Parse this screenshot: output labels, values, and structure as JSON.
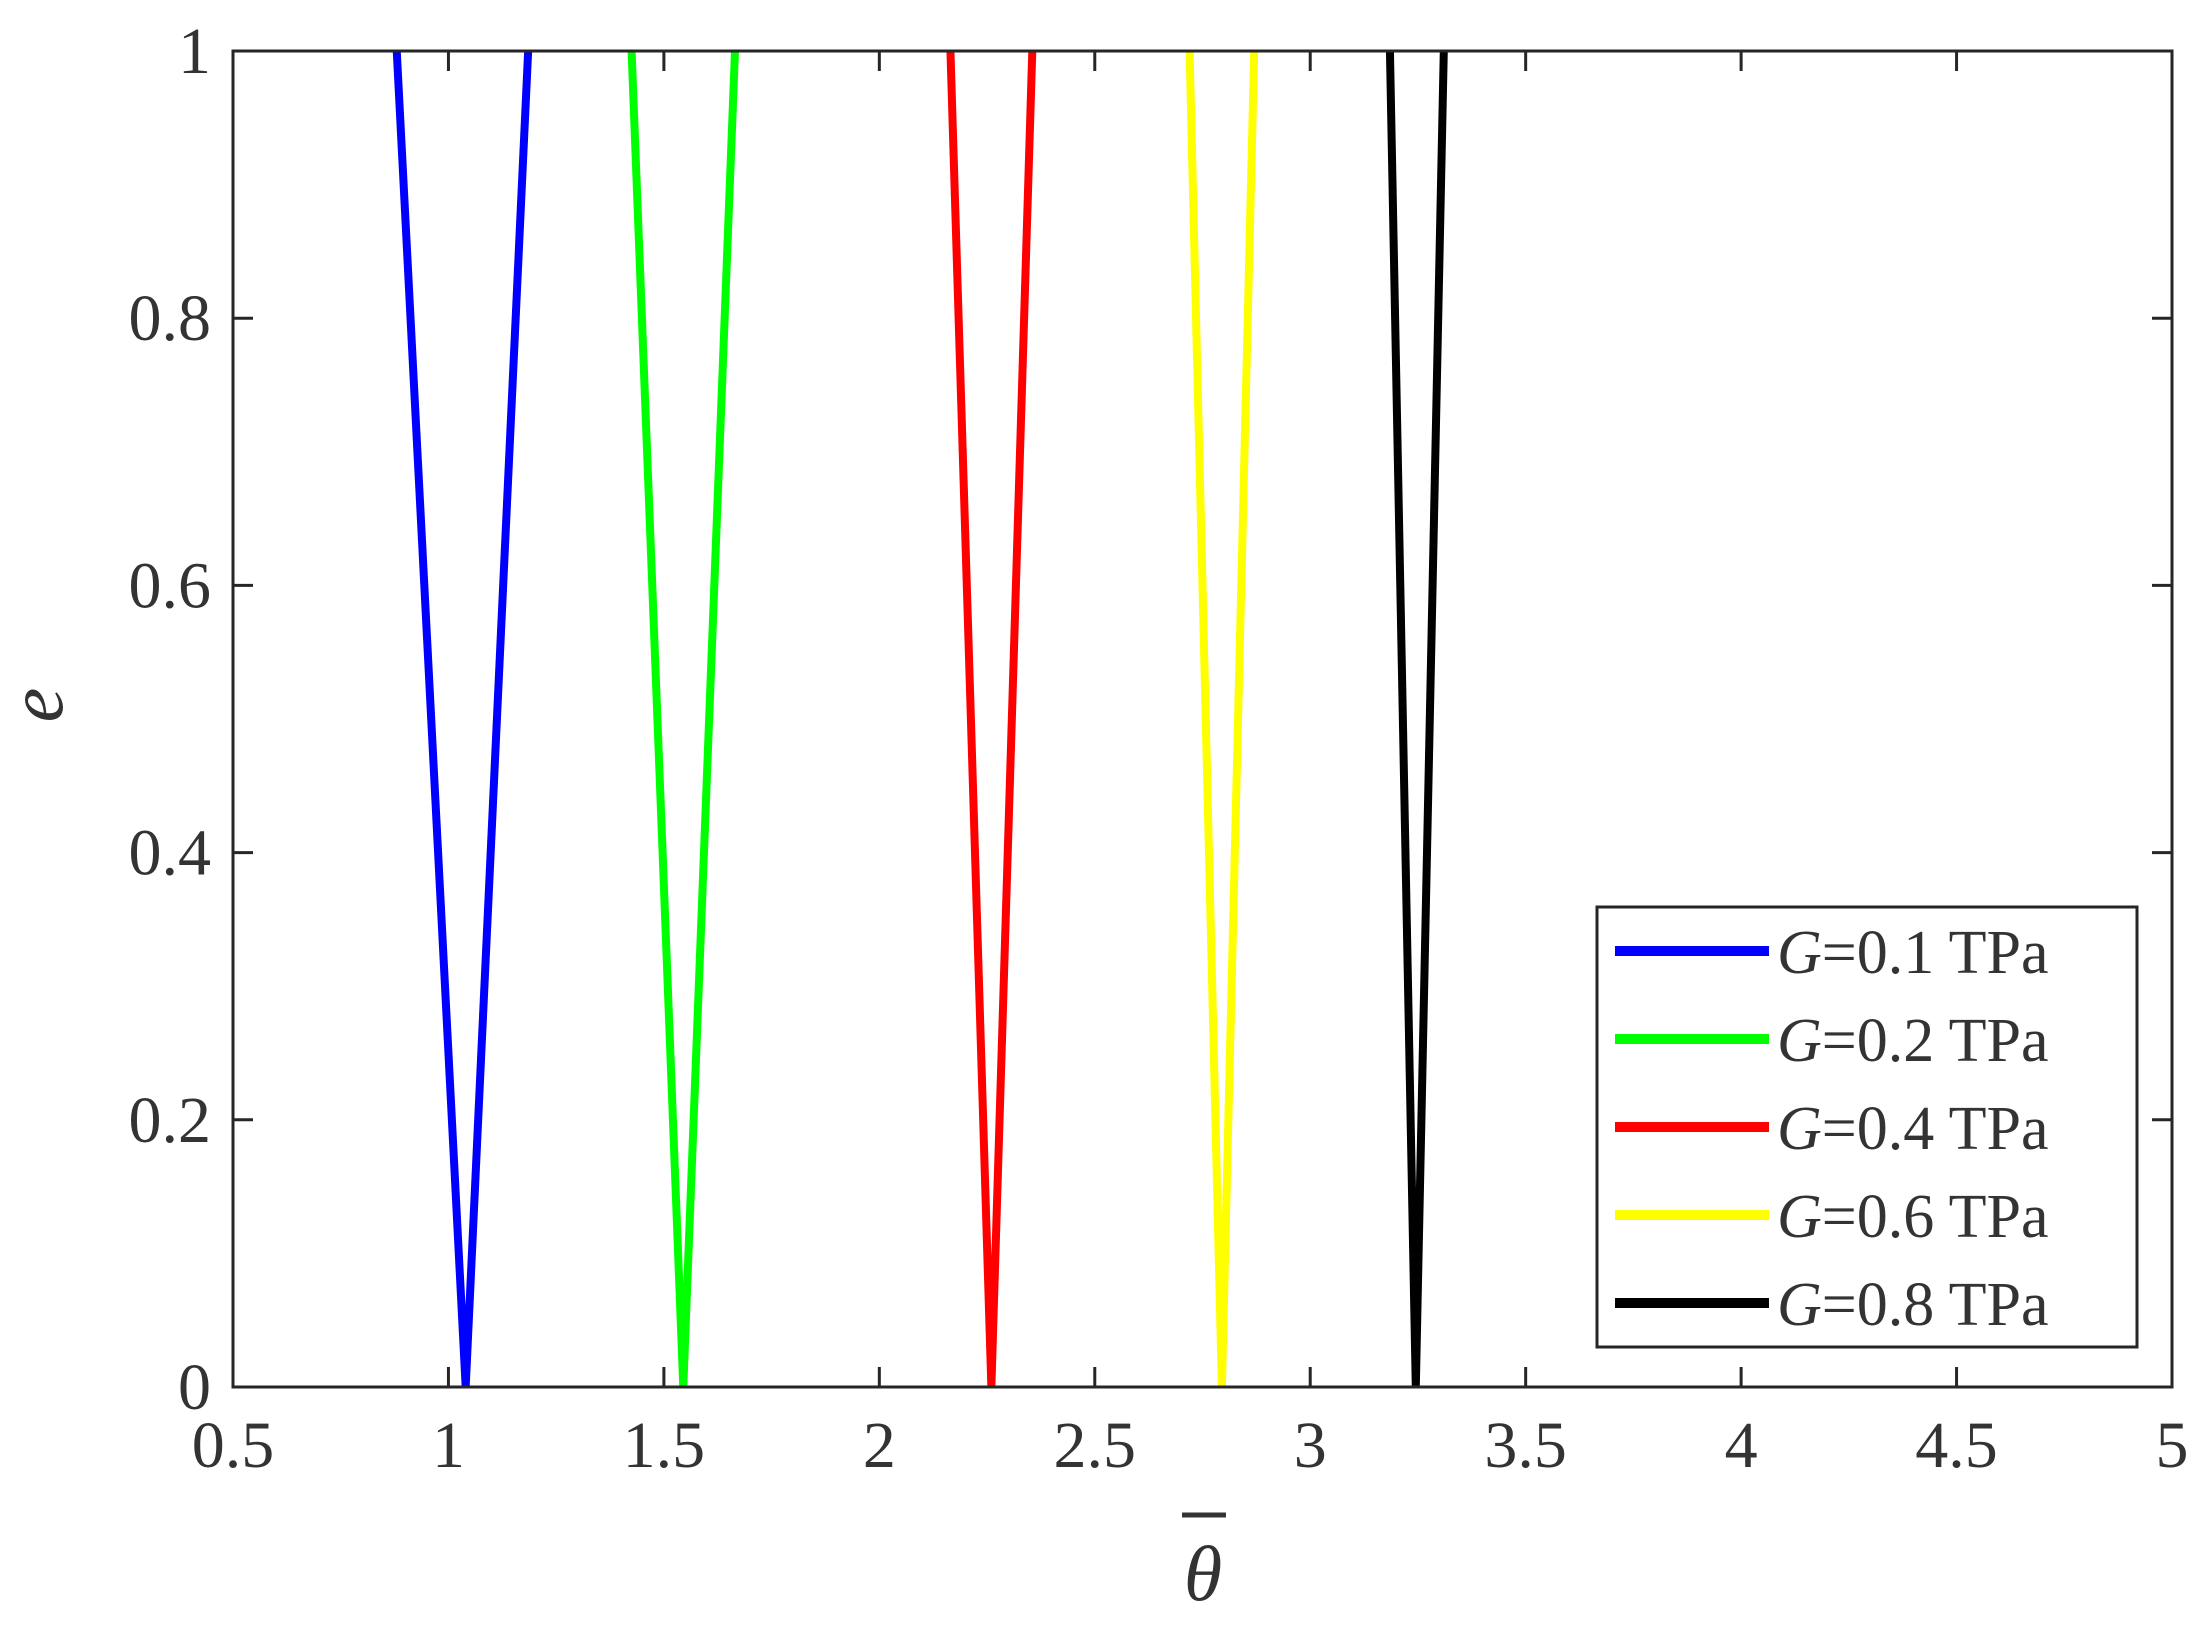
{
  "chart_data": {
    "type": "line",
    "xlabel": "θ",
    "ylabel": "e",
    "xlim": [
      0.5,
      5
    ],
    "ylim": [
      0,
      1
    ],
    "xticks": [
      "0.5",
      "1",
      "1.5",
      "2",
      "2.5",
      "3",
      "3.5",
      "4",
      "4.5",
      "5"
    ],
    "yticks": [
      "0",
      "0.2",
      "0.4",
      "0.6",
      "0.8",
      "1"
    ],
    "grid": false,
    "legend_position": "lower-right",
    "series": [
      {
        "name_prefix": "G",
        "name_suffix": "=0.1 TPa",
        "color": "#0000ff",
        "x": [
          0.88,
          1.04,
          1.185
        ],
        "y": [
          1,
          0,
          1
        ]
      },
      {
        "name_prefix": "G",
        "name_suffix": "=0.2 TPa",
        "color": "#00ff00",
        "x": [
          1.425,
          1.545,
          1.665
        ],
        "y": [
          1,
          0,
          1
        ]
      },
      {
        "name_prefix": "G",
        "name_suffix": "=0.4 TPa",
        "color": "#ff0000",
        "x": [
          2.165,
          2.26,
          2.355
        ],
        "y": [
          1,
          0,
          1
        ]
      },
      {
        "name_prefix": "G",
        "name_suffix": "=0.6 TPa",
        "color": "#ffff00",
        "x": [
          2.72,
          2.795,
          2.87
        ],
        "y": [
          1,
          0,
          1
        ]
      },
      {
        "name_prefix": "G",
        "name_suffix": "=0.8 TPa",
        "color": "#000000",
        "x": [
          3.185,
          3.245,
          3.31
        ],
        "y": [
          1,
          0,
          1
        ]
      }
    ]
  }
}
